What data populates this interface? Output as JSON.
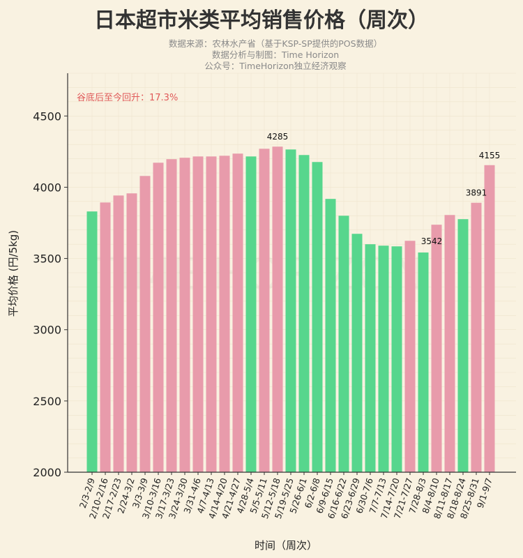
{
  "chart_data": {
    "type": "bar",
    "title": "日本超市米类平均销售价格（周次）",
    "subtitles": [
      "数据来源：农林水产省（基于KSP-SP提供的POS数据）",
      "数据分析与制图：Time Horizon",
      "公众号：TimeHorizon独立经济观察"
    ],
    "xlabel": "时间（周次）",
    "ylabel": "平均价格 (円/5kg)",
    "ylim": [
      2000,
      4800
    ],
    "yticks": [
      2000,
      2500,
      3000,
      3500,
      4000,
      4500
    ],
    "grid": true,
    "annotation": "谷底后至今回升：17.3%",
    "watermark": "TIME HORIZON",
    "colors": {
      "up": "#e89bab",
      "down": "#57d68d",
      "annotation": "#e05a5a",
      "background": "#f9f2e1"
    },
    "categories": [
      "2/3-2/9",
      "2/10-2/16",
      "2/17-2/23",
      "2/24-3/2",
      "3/3-3/9",
      "3/10-3/16",
      "3/17-3/23",
      "3/24-3/30",
      "3/31-4/6",
      "4/7-4/13",
      "4/14-4/20",
      "4/21-4/27",
      "4/28-5/4",
      "5/5-5/11",
      "5/12-5/18",
      "5/19-5/25",
      "5/26-6/1",
      "6/2-6/8",
      "6/9-6/15",
      "6/16-6/22",
      "6/23-6/29",
      "6/30-7/6",
      "7/7-7/13",
      "7/14-7/20",
      "7/21-7/27",
      "7/28-8/3",
      "8/4-8/10",
      "8/11-8/17",
      "8/18-8/24",
      "8/25-8/31",
      "9/1-9/7"
    ],
    "values": [
      3830,
      3893,
      3942,
      3957,
      4079,
      4172,
      4197,
      4207,
      4216,
      4216,
      4221,
      4236,
      4216,
      4270,
      4285,
      4265,
      4226,
      4177,
      3918,
      3800,
      3673,
      3600,
      3590,
      3585,
      3624,
      3542,
      3737,
      3805,
      3776,
      3891,
      4155
    ],
    "bar_colors": [
      "down",
      "up",
      "up",
      "up",
      "up",
      "up",
      "up",
      "up",
      "up",
      "up",
      "up",
      "up",
      "down",
      "up",
      "up",
      "down",
      "down",
      "down",
      "down",
      "down",
      "down",
      "down",
      "down",
      "down",
      "up",
      "down",
      "up",
      "up",
      "down",
      "up",
      "up"
    ],
    "data_labels": [
      {
        "index": 14,
        "text": "4285"
      },
      {
        "index": 25,
        "text": "3542"
      },
      {
        "index": 29,
        "text": "3891"
      },
      {
        "index": 30,
        "text": "4155"
      }
    ]
  }
}
